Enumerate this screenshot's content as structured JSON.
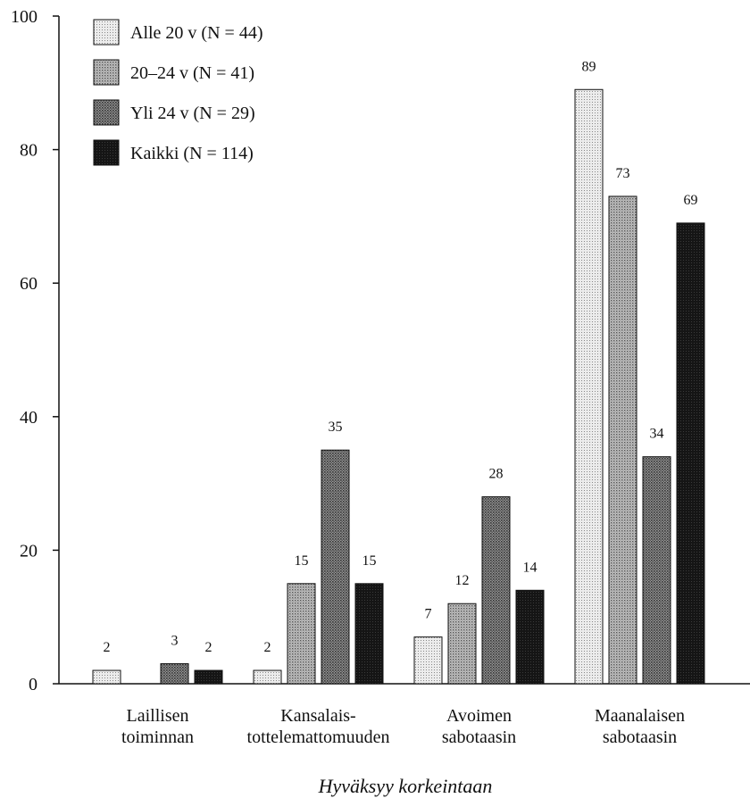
{
  "chart_data": {
    "type": "bar",
    "title": "",
    "xlabel": "Hyväksyy korkeintaan",
    "ylabel": "",
    "ylim": [
      0,
      100
    ],
    "yticks": [
      "0",
      "20",
      "40",
      "60",
      "80",
      "100"
    ],
    "grid": false,
    "legend_position": "top-left",
    "categories": [
      [
        "Laillisen",
        "toiminnan"
      ],
      [
        "Kansalais-",
        "tottelemattomuuden"
      ],
      [
        "Avoimen",
        "sabotaasin"
      ],
      [
        "Maanalaisen",
        "sabotaasin"
      ]
    ],
    "series": [
      {
        "name": "Alle 20 v (N = 44)",
        "values": [
          2,
          2,
          7,
          89
        ],
        "fill": "dots-light"
      },
      {
        "name": "20–24 v (N = 41)",
        "values": [
          null,
          15,
          12,
          73
        ],
        "fill": "dots-medium"
      },
      {
        "name": "Yli 24 v (N = 29)",
        "values": [
          3,
          35,
          28,
          34
        ],
        "fill": "dots-dark"
      },
      {
        "name": "Kaikki (N = 114)",
        "values": [
          2,
          15,
          14,
          69
        ],
        "fill": "solid-black"
      }
    ]
  }
}
